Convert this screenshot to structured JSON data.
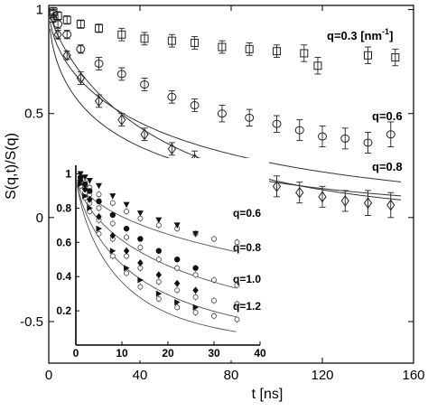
{
  "chart_data": [
    {
      "type": "scatter",
      "role": "main",
      "title": "",
      "xlabel": "t [ns]",
      "ylabel": "S(q,t)/S(q)",
      "xlim": [
        0,
        160
      ],
      "ylim": [
        -0.7,
        1.02
      ],
      "xticks": [
        0,
        40,
        80,
        120,
        160
      ],
      "yticks": [
        -0.5,
        0,
        0.5,
        1
      ],
      "xtick_labels": [
        "0",
        "40",
        "80",
        "120",
        "160"
      ],
      "ytick_labels": [
        "-0.5",
        "0",
        "0.5",
        "1"
      ],
      "grid": false,
      "series": [
        {
          "marker": "square",
          "annotation": "q=0.3 [nm",
          "annotation_sup": "-1",
          "annotation_tail": "]",
          "x": [
            2,
            4,
            8,
            14,
            22,
            32,
            42,
            54,
            64,
            76,
            88,
            100,
            112,
            118,
            140,
            152
          ],
          "y": [
            0.99,
            0.97,
            0.95,
            0.93,
            0.91,
            0.88,
            0.86,
            0.85,
            0.84,
            0.82,
            0.81,
            0.8,
            0.79,
            0.73,
            0.78,
            0.77
          ],
          "err": [
            0.02,
            0.02,
            0.02,
            0.02,
            0.02,
            0.03,
            0.03,
            0.03,
            0.03,
            0.03,
            0.03,
            0.03,
            0.04,
            0.04,
            0.04,
            0.04
          ],
          "fit": {
            "tau": 35,
            "beta": 0.55
          }
        },
        {
          "marker": "circle",
          "annotation": "q=0.6",
          "x": [
            2,
            4,
            8,
            14,
            22,
            32,
            42,
            54,
            64,
            76,
            88,
            100,
            110,
            120,
            130,
            140,
            150
          ],
          "y": [
            0.98,
            0.93,
            0.88,
            0.81,
            0.74,
            0.69,
            0.64,
            0.58,
            0.54,
            0.5,
            0.48,
            0.45,
            0.42,
            0.39,
            0.38,
            0.36,
            0.4
          ],
          "err": [
            0.02,
            0.02,
            0.02,
            0.02,
            0.03,
            0.03,
            0.03,
            0.03,
            0.03,
            0.04,
            0.04,
            0.04,
            0.05,
            0.05,
            0.05,
            0.05,
            0.06
          ],
          "fit": {
            "tau": 60,
            "beta": 0.6
          }
        },
        {
          "marker": "diamond",
          "annotation": "q=0.8",
          "x": [
            2,
            4,
            8,
            14,
            22,
            32,
            42,
            54,
            64,
            76,
            88,
            100,
            110,
            120,
            130,
            140,
            150
          ],
          "y": [
            0.96,
            0.88,
            0.78,
            0.67,
            0.56,
            0.47,
            0.4,
            0.33,
            0.28,
            0.23,
            0.18,
            0.15,
            0.12,
            0.1,
            0.08,
            0.07,
            0.06
          ],
          "err": [
            0.02,
            0.02,
            0.02,
            0.03,
            0.03,
            0.03,
            0.03,
            0.03,
            0.04,
            0.04,
            0.04,
            0.05,
            0.05,
            0.05,
            0.05,
            0.06,
            0.06
          ],
          "fit": {
            "tau": 50,
            "beta": 0.8
          }
        }
      ]
    },
    {
      "type": "scatter",
      "role": "inset",
      "title": "",
      "xlim": [
        0,
        40
      ],
      "ylim": [
        0,
        1.05
      ],
      "xticks": [
        0,
        10,
        20,
        30,
        40
      ],
      "yticks": [
        0.2,
        0.4,
        0.6,
        0.8,
        1
      ],
      "xtick_labels": [
        "0",
        "10",
        "20",
        "30",
        "40"
      ],
      "ytick_labels": [
        "0.2",
        "0.4",
        "0.6",
        "0.8",
        "1"
      ],
      "grid": false,
      "series": [
        {
          "annotation": "q=0.6",
          "x": [
            1,
            2,
            3,
            5,
            8,
            11,
            14,
            18,
            22,
            26,
            30,
            35
          ],
          "filled_y": [
            1.0,
            0.98,
            0.96,
            0.93,
            0.87,
            0.82,
            0.77,
            0.73,
            0.7,
            0.65
          ],
          "open_y": [
            0.98,
            0.95,
            0.92,
            0.88,
            0.83,
            0.78,
            0.74,
            0.7,
            0.68,
            0.65,
            0.62,
            0.6
          ],
          "fit": {
            "tau": 80,
            "beta": 0.6
          }
        },
        {
          "annotation": "q=0.8",
          "x": [
            1,
            2,
            3,
            5,
            8,
            11,
            14,
            18,
            22,
            26,
            30,
            35
          ],
          "filled_y": [
            0.98,
            0.94,
            0.9,
            0.84,
            0.76,
            0.68,
            0.62,
            0.55,
            0.5,
            0.45
          ],
          "open_y": [
            0.97,
            0.92,
            0.88,
            0.8,
            0.71,
            0.63,
            0.57,
            0.5,
            0.45,
            0.41,
            0.38,
            0.35
          ],
          "fit": {
            "tau": 30,
            "beta": 0.65
          }
        },
        {
          "annotation": "q=1.0",
          "x": [
            1,
            2,
            3,
            5,
            8,
            11,
            14,
            18,
            22,
            26,
            30,
            35
          ],
          "filled_y": [
            0.96,
            0.91,
            0.85,
            0.75,
            0.64,
            0.55,
            0.48,
            0.41,
            0.36,
            0.32
          ],
          "open_y": [
            0.95,
            0.89,
            0.83,
            0.73,
            0.62,
            0.52,
            0.45,
            0.37,
            0.32,
            0.28,
            0.26,
            0.24
          ],
          "fit": {
            "tau": 15,
            "beta": 0.7
          }
        },
        {
          "annotation": "q=1.2",
          "x": [
            1,
            2,
            3,
            5,
            8,
            11,
            14,
            18,
            22,
            26,
            30,
            35
          ],
          "filled_y": [
            0.94,
            0.87,
            0.8,
            0.68,
            0.55,
            0.45,
            0.38,
            0.3,
            0.25,
            0.22
          ],
          "open_y": [
            0.93,
            0.86,
            0.78,
            0.65,
            0.52,
            0.42,
            0.34,
            0.27,
            0.22,
            0.19,
            0.17,
            0.15
          ],
          "fit": {
            "tau": 10,
            "beta": 0.75
          }
        }
      ]
    }
  ]
}
